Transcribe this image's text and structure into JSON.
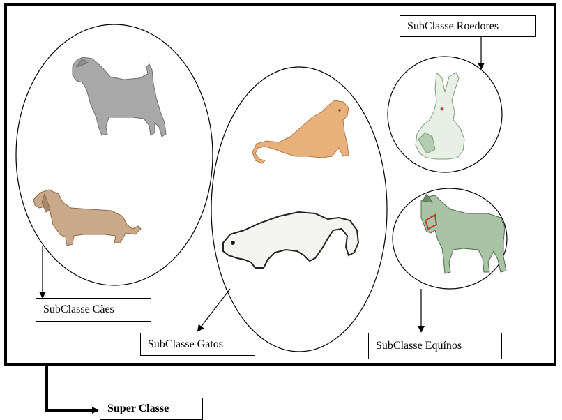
{
  "labels": {
    "caes": "SubClasse Cães",
    "gatos": "SubClasse Gatos",
    "roedores": "SubClasse Roedores",
    "equinos": "SubClasse Equínos",
    "super": "Super Classe"
  },
  "icons": [
    "dog-icon",
    "dachshund-icon",
    "cougar-icon",
    "ferret-icon",
    "rabbit-icon",
    "donkey-icon"
  ],
  "colors": {
    "line": "#000000",
    "terrier": "#a8a8a8",
    "dachshund": "#c9a98a",
    "cougar": "#e8b07a",
    "ferret": "#f4f4f0",
    "rabbit": "#c8dcc4",
    "donkey": "#a9c4a4"
  }
}
